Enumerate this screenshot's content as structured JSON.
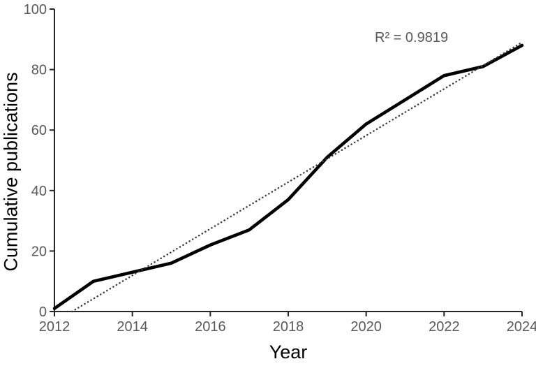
{
  "chart_data": {
    "type": "line",
    "xlabel": "Year",
    "ylabel": "Cumulative publications",
    "annotation_r2": "R² = 0.9819",
    "x": [
      2012,
      2013,
      2014,
      2015,
      2016,
      2017,
      2018,
      2019,
      2020,
      2021,
      2022,
      2023,
      2024
    ],
    "series": [
      {
        "name": "Cumulative publications",
        "values": [
          1,
          10,
          13,
          16,
          22,
          27,
          37,
          51,
          62,
          70,
          78,
          81,
          88
        ],
        "color": "#000000",
        "style": "solid"
      }
    ],
    "trendline": {
      "type": "linear",
      "style": "dotted",
      "color": "#3d3d3d",
      "r_squared": 0.9819
    },
    "xlim": [
      2012,
      2024
    ],
    "ylim": [
      0,
      100
    ],
    "x_ticks": [
      2012,
      2014,
      2016,
      2018,
      2020,
      2022,
      2024
    ],
    "y_ticks": [
      0,
      20,
      40,
      60,
      80,
      100
    ],
    "grid": false,
    "legend": false,
    "colors": {
      "axis": "#262626",
      "tick_label": "#595959",
      "axis_title": "#000000",
      "annotation": "#595959"
    }
  }
}
